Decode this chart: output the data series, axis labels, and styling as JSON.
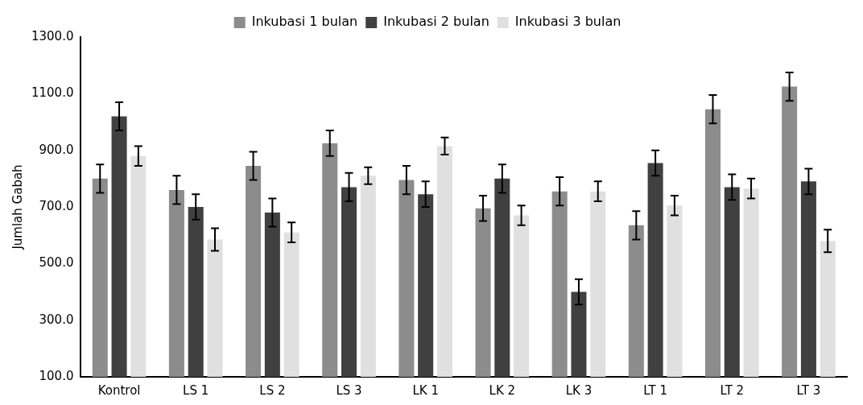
{
  "chart_data": {
    "type": "bar",
    "ylabel": "Jumlah Gabah",
    "categories": [
      "Kontrol",
      "LS 1",
      "LS 2",
      "LS 3",
      "LK 1",
      "LK 2",
      "LK 3",
      "LT 1",
      "LT 2",
      "LT 3"
    ],
    "series": [
      {
        "name": "Inkubasi 1 bulan",
        "color": "#8c8c8c",
        "values": [
          800,
          760,
          845,
          925,
          795,
          695,
          755,
          635,
          1045,
          1125
        ],
        "errors": [
          50,
          50,
          50,
          45,
          50,
          45,
          50,
          50,
          50,
          50
        ]
      },
      {
        "name": "Inkubasi 2 bulan",
        "color": "#404040",
        "values": [
          1020,
          700,
          680,
          770,
          745,
          800,
          400,
          855,
          770,
          790
        ],
        "errors": [
          50,
          45,
          50,
          50,
          45,
          50,
          45,
          45,
          45,
          45
        ]
      },
      {
        "name": "Inkubasi 3 bulan",
        "color": "#e0e0e0",
        "values": [
          880,
          585,
          610,
          810,
          915,
          670,
          755,
          705,
          765,
          580
        ],
        "errors": [
          35,
          40,
          35,
          30,
          30,
          35,
          35,
          35,
          35,
          40
        ]
      }
    ],
    "ylim": [
      100,
      1300
    ],
    "yticks": [
      {
        "value": 100,
        "label": "100.0"
      },
      {
        "value": 300,
        "label": "300.0"
      },
      {
        "value": 500,
        "label": "500.0"
      },
      {
        "value": 700,
        "label": "700.0"
      },
      {
        "value": 900,
        "label": "900.0"
      },
      {
        "value": 1100,
        "label": "1100.0"
      },
      {
        "value": 1300,
        "label": "1300.0"
      }
    ],
    "grid": false,
    "legend": "top"
  }
}
